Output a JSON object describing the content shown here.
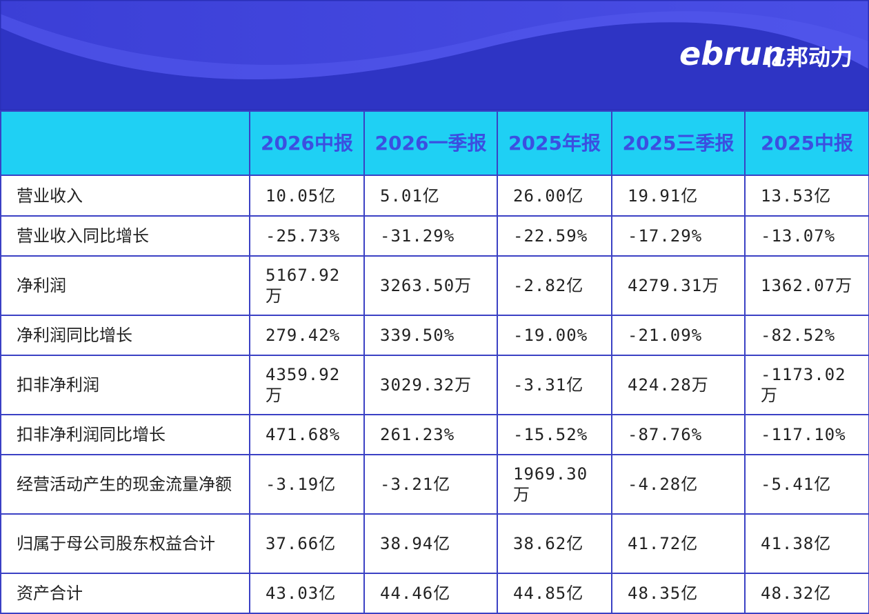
{
  "logo": {
    "latin": "ebrun",
    "chinese": "亿邦动力"
  },
  "table": {
    "columns": [
      "2026中报",
      "2026一季报",
      "2025年报",
      "2025三季报",
      "2025中报"
    ],
    "rows": [
      [
        "营业收入",
        "10.05亿",
        "5.01亿",
        "26.00亿",
        "19.91亿",
        "13.53亿"
      ],
      [
        "营业收入同比增长",
        "-25.73%",
        "-31.29%",
        "-22.59%",
        "-17.29%",
        "-13.07%"
      ],
      [
        "净利润",
        "5167.92万",
        "3263.50万",
        "-2.82亿",
        "4279.31万",
        "1362.07万"
      ],
      [
        "净利润同比增长",
        "279.42%",
        "339.50%",
        "-19.00%",
        "-21.09%",
        "-82.52%"
      ],
      [
        "扣非净利润",
        "4359.92万",
        "3029.32万",
        "-3.31亿",
        "424.28万",
        "-1173.02万"
      ],
      [
        "扣非净利润同比增长",
        "471.68%",
        "261.23%",
        "-15.52%",
        "-87.76%",
        "-117.10%"
      ],
      [
        "经营活动产生的现金流量净额",
        "-3.19亿",
        "-3.21亿",
        "1969.30万",
        "-4.28亿",
        "-5.41亿"
      ],
      [
        "归属于母公司股东权益合计",
        "37.66亿",
        "38.94亿",
        "38.62亿",
        "41.72亿",
        "41.38亿"
      ],
      [
        "资产合计",
        "43.03亿",
        "44.46亿",
        "44.85亿",
        "48.35亿",
        "48.32亿"
      ]
    ]
  }
}
